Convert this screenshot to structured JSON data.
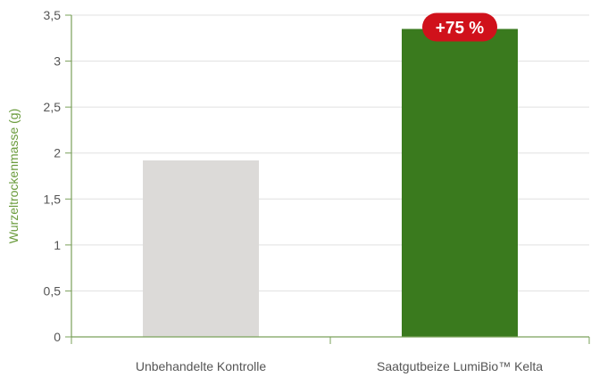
{
  "chart_data": {
    "type": "bar",
    "title": "",
    "xlabel": "",
    "ylabel": "Wurzeltrockenmasse (g)",
    "ylim": [
      0,
      3.5
    ],
    "yticks": [
      "0",
      "0,5",
      "1",
      "1,5",
      "2",
      "2,5",
      "3",
      "3,5"
    ],
    "ytick_values": [
      0,
      0.5,
      1,
      1.5,
      2,
      2.5,
      3,
      3.5
    ],
    "grid": true,
    "categories": [
      "Unbehandelte Kontrolle",
      "Saatgutbeize LumiBio™ Kelta"
    ],
    "values": [
      1.92,
      3.35
    ],
    "bar_colors": [
      "#dcdad8",
      "#3a7a1e"
    ],
    "annotations": [
      {
        "category_index": 1,
        "text": "+75 %",
        "color": "#d0111b"
      }
    ]
  },
  "colors": {
    "axis": "#7aa05a",
    "grid": "#e0e0e0",
    "tick_label": "#555555",
    "axis_label": "#6a9b3c"
  }
}
